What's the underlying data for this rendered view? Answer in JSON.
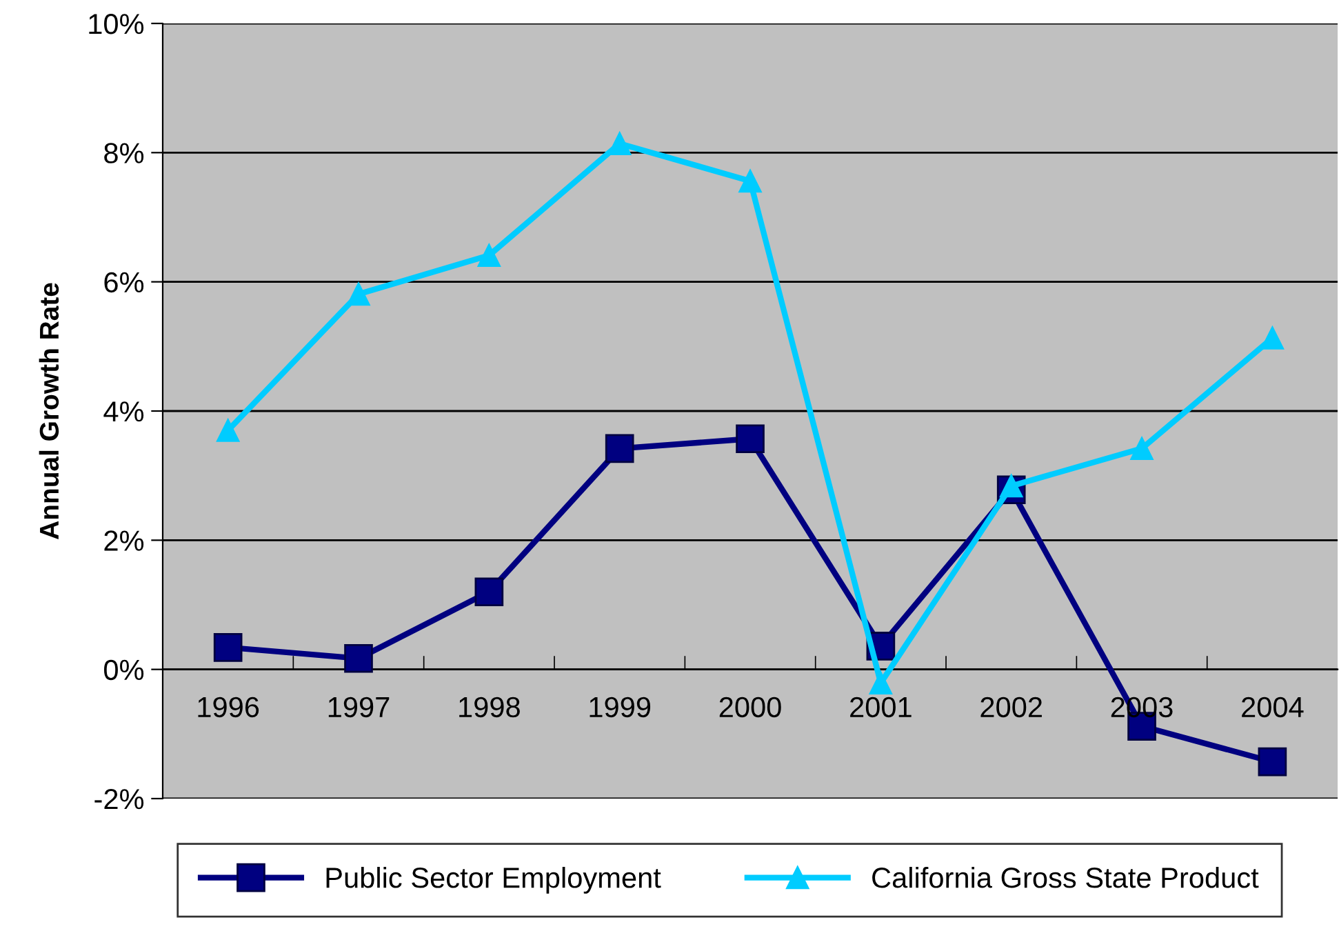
{
  "chart_data": {
    "type": "line",
    "ylabel": "Annual Growth Rate",
    "categories": [
      "1996",
      "1997",
      "1998",
      "1999",
      "2000",
      "2001",
      "2002",
      "2003",
      "2004"
    ],
    "series": [
      {
        "name": "Public Sector Employment",
        "color": "#000080",
        "marker": "square",
        "values": [
          0.34,
          0.17,
          1.2,
          3.42,
          3.57,
          0.36,
          2.78,
          -0.88,
          -1.43
        ]
      },
      {
        "name": "California Gross State Product",
        "color": "#00ccff",
        "marker": "triangle",
        "values": [
          3.7,
          5.81,
          6.41,
          8.14,
          7.56,
          -0.21,
          2.84,
          3.42,
          5.13
        ]
      }
    ],
    "ylim": [
      -2,
      10
    ],
    "yticks": [
      {
        "value": -2,
        "label": "-2%"
      },
      {
        "value": 0,
        "label": "0%"
      },
      {
        "value": 2,
        "label": "2%"
      },
      {
        "value": 4,
        "label": "4%"
      },
      {
        "value": 6,
        "label": "6%"
      },
      {
        "value": 8,
        "label": "8%"
      },
      {
        "value": 10,
        "label": "10%"
      }
    ],
    "grid": "y",
    "legend": "bottom",
    "line_style": "solid"
  }
}
